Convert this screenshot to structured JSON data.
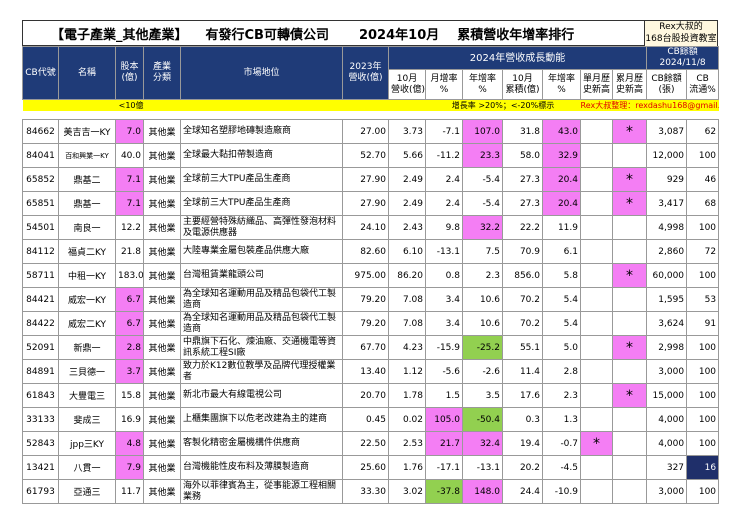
{
  "header": {
    "title_category": "【電子產業_其他產業】",
    "title_main": "有發行CB可轉債公司",
    "title_month": "2024年10月",
    "title_rank": "累積營收年增率排行",
    "brand": [
      "Rex大叔的",
      "168台股投資教室"
    ]
  },
  "table": {
    "columns": [
      [
        "CB代號"
      ],
      [
        "名稱"
      ],
      [
        "股本",
        "(億)"
      ],
      [
        "產業",
        "分類"
      ],
      [
        "市場地位"
      ],
      [
        "2023年",
        "營收(億)"
      ],
      [
        "10月",
        "營收(億)"
      ],
      [
        "月增率",
        "%"
      ],
      [
        "年增率",
        "%"
      ],
      [
        "10月",
        "累積(億)"
      ],
      [
        "年增率",
        "%"
      ],
      [
        "單月歷",
        "史新高"
      ],
      [
        "累月歷",
        "史新高"
      ],
      [
        "CB餘額",
        "(張)"
      ],
      [
        "CB",
        "流通%"
      ]
    ],
    "group": "2024年營收成長動能",
    "cb_header": [
      "CB餘額",
      "2024/11/8"
    ],
    "note": {
      "capital": "<10億",
      "growth": "增長率 >20%；<-20%標示",
      "credit": "Rex大叔整理：rexdashu168@gmail.com"
    },
    "rows": [
      [
        "84662",
        "美吉吉一KY",
        "7.0",
        "其他業",
        "全球知名塑膠地磚製造廠商",
        "27.00",
        "3.73",
        "-7.1",
        "107.0",
        "31.8",
        "43.0",
        null,
        "*",
        "3,087",
        "62"
      ],
      [
        "84041",
        "百和興業一KY",
        "40.0",
        "其他業",
        "全球最大黏扣帶製造商",
        "52.70",
        "5.66",
        "-11.2",
        "23.3",
        "58.0",
        "32.9",
        null,
        null,
        "12,000",
        "100"
      ],
      [
        "65852",
        "鼎基二",
        "7.1",
        "其他業",
        "全球前三大TPU產品生產商",
        "27.90",
        "2.49",
        "2.4",
        "-5.4",
        "27.3",
        "20.4",
        null,
        "*",
        "929",
        "46"
      ],
      [
        "65851",
        "鼎基一",
        "7.1",
        "其他業",
        "全球前三大TPU產品生產商",
        "27.90",
        "2.49",
        "2.4",
        "-5.4",
        "27.3",
        "20.4",
        null,
        "*",
        "3,417",
        "68"
      ],
      [
        "54501",
        "南良一",
        "12.2",
        "其他業",
        "主要經營特殊紡織品、高彈性發泡材料及電源供應器",
        "24.10",
        "2.43",
        "9.8",
        "32.2",
        "22.2",
        "11.9",
        null,
        null,
        "4,998",
        "100"
      ],
      [
        "84112",
        "福貞二KY",
        "21.8",
        "其他業",
        "大陸專業金屬包裝產品供應大廠",
        "82.60",
        "6.10",
        "-13.1",
        "7.5",
        "70.9",
        "6.1",
        null,
        null,
        "2,860",
        "72"
      ],
      [
        "58711",
        "中租一KY",
        "183.0",
        "其他業",
        "台灣租賃業龍頭公司",
        "975.00",
        "86.20",
        "0.8",
        "2.3",
        "856.0",
        "5.8",
        null,
        "*",
        "60,000",
        "100"
      ],
      [
        "84421",
        "威宏一KY",
        "6.7",
        "其他業",
        "為全球知名運動用品及精品包袋代工製造商",
        "79.20",
        "7.08",
        "3.4",
        "10.6",
        "70.2",
        "5.4",
        null,
        null,
        "1,595",
        "53"
      ],
      [
        "84422",
        "威宏二KY",
        "6.7",
        "其他業",
        "為全球知名運動用品及精品包袋代工製造商",
        "79.20",
        "7.08",
        "3.4",
        "10.6",
        "70.2",
        "5.4",
        null,
        null,
        "3,624",
        "91"
      ],
      [
        "52091",
        "新鼎一",
        "2.8",
        "其他業",
        "中鼎旗下石化、煉油廠、交通機電等資訊系統工程SI廠",
        "67.70",
        "4.23",
        "-15.9",
        "-25.2",
        "55.1",
        "5.0",
        null,
        "*",
        "2,998",
        "100"
      ],
      [
        "84891",
        "三貝德一",
        "3.7",
        "其他業",
        "致力於K12數位教學及品牌代理授權業者",
        "13.40",
        "1.12",
        "-5.6",
        "-2.6",
        "11.4",
        "2.8",
        null,
        null,
        "3,000",
        "100"
      ],
      [
        "61843",
        "大豐電三",
        "15.8",
        "其他業",
        "新北市最大有線電視公司",
        "20.70",
        "1.78",
        "1.5",
        "3.5",
        "17.6",
        "2.3",
        null,
        "*",
        "15,000",
        "100"
      ],
      [
        "33133",
        "斐成三",
        "16.9",
        "其他業",
        "上櫃集團旗下以危老改建為主的建商",
        "0.45",
        "0.02",
        "105.0",
        "-50.4",
        "0.3",
        "1.3",
        null,
        null,
        "4,000",
        "100"
      ],
      [
        "52843",
        "jpp三KY",
        "4.8",
        "其他業",
        "客製化精密金屬機構件供應商",
        "22.50",
        "2.53",
        "21.7",
        "32.4",
        "19.4",
        "-0.7",
        "*",
        null,
        "4,000",
        "100"
      ],
      [
        "13421",
        "八貫一",
        "7.9",
        "其他業",
        "台灣機能性皮布料及薄膜製造商",
        "25.60",
        "1.76",
        "-17.1",
        "-13.1",
        "20.2",
        "-4.5",
        null,
        null,
        "327",
        "16"
      ],
      [
        "61793",
        "亞通三",
        "11.7",
        "其他業",
        "海外以菲律賓為主，從事能源工程相關業務",
        "33.30",
        "3.02",
        "-37.8",
        "148.0",
        "24.4",
        "-10.9",
        null,
        null,
        "3,000",
        "100"
      ]
    ]
  }
}
